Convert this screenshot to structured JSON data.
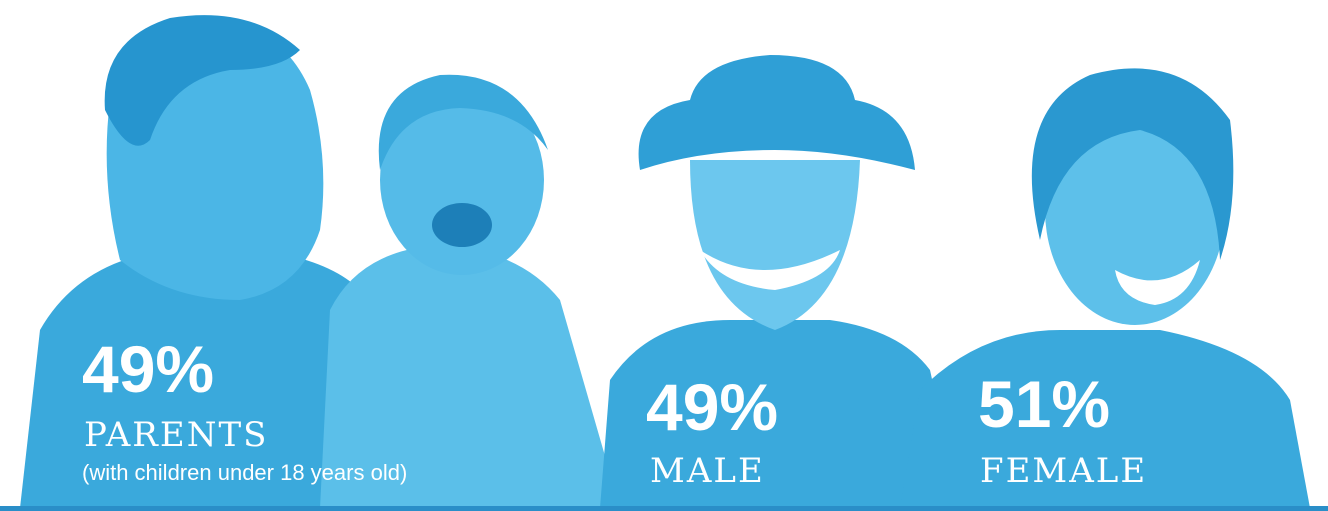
{
  "stats": [
    {
      "value": "49%",
      "label": "PARENTS",
      "note": "(with children under 18 years old)"
    },
    {
      "value": "49%",
      "label": "MALE"
    },
    {
      "value": "51%",
      "label": "FEMALE"
    }
  ]
}
